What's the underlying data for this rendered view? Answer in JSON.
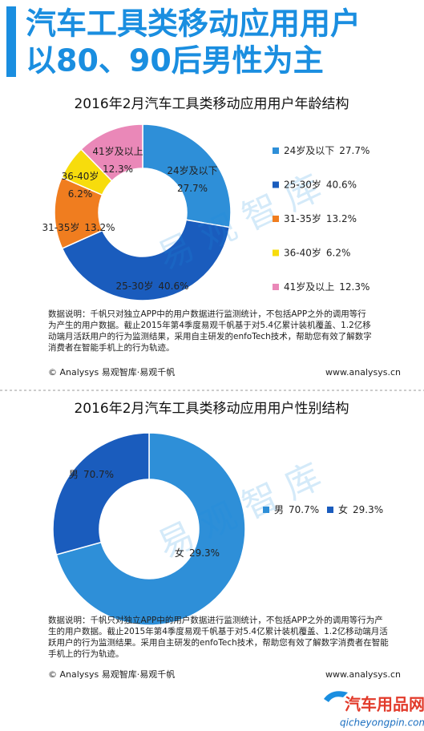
{
  "header": {
    "lines": [
      "汽车工具类移动应用用户",
      "以80、90后男性为主"
    ]
  },
  "chart_data": [
    {
      "type": "donut",
      "title": "2016年2月汽车工具类移动应用用户年龄结构",
      "categories": [
        "24岁及以下",
        "25-30岁",
        "31-35岁",
        "36-40岁",
        "41岁及以上"
      ],
      "values": [
        27.7,
        40.6,
        13.2,
        6.2,
        12.3
      ],
      "value_labels": [
        "27.7%",
        "40.6%",
        "13.2%",
        "6.2%",
        "12.3%"
      ],
      "colors": [
        "#2e8fd8",
        "#1a5cbd",
        "#f07d1f",
        "#f7dc0c",
        "#ea88b8"
      ],
      "watermark": "易 观 智 库",
      "note": [
        "数据说明：千帆只对独立APP中的用户数据进行监测统计，不包括APP之外的调用等行",
        "为产生的用户数据。截止2015年第4季度易观千帆基于对5.4亿累计装机覆盖、1.2亿移",
        "动端月活跃用户的行为监测结果，采用自主研发的enfoTech技术，帮助您有效了解数字",
        "消费者在智能手机上的行为轨迹。"
      ],
      "source": "© Analysys 易观智库·易观千帆",
      "website": "www.analysys.cn"
    },
    {
      "type": "donut",
      "title": "2016年2月汽车工具类移动应用用户性别结构",
      "categories": [
        "男",
        "女"
      ],
      "values": [
        70.7,
        29.3
      ],
      "value_labels": [
        "70.7%",
        "29.3%"
      ],
      "colors": [
        "#2e8fd8",
        "#1a5cbd"
      ],
      "watermark": "易 观 智 库",
      "note": [
        "数据说明：千帆只对独立APP中的用户数据进行监测统计，不包括APP之外的调用等行为产",
        "生的用户数据。截止2015年第4季度易观千帆基于对5.4亿累计装机覆盖、1.2亿移动端月活",
        "跃用户的行为监测结果。采用自主研发的enfoTech技术，帮助您有效了解数字消费者在智能",
        "手机上的行为轨迹。"
      ],
      "source": "© Analysys 易观智库·易观千帆",
      "website": "www.analysys.cn"
    }
  ],
  "logo": {
    "name": "汽车用品网",
    "url": "qicheyongpin.com"
  }
}
